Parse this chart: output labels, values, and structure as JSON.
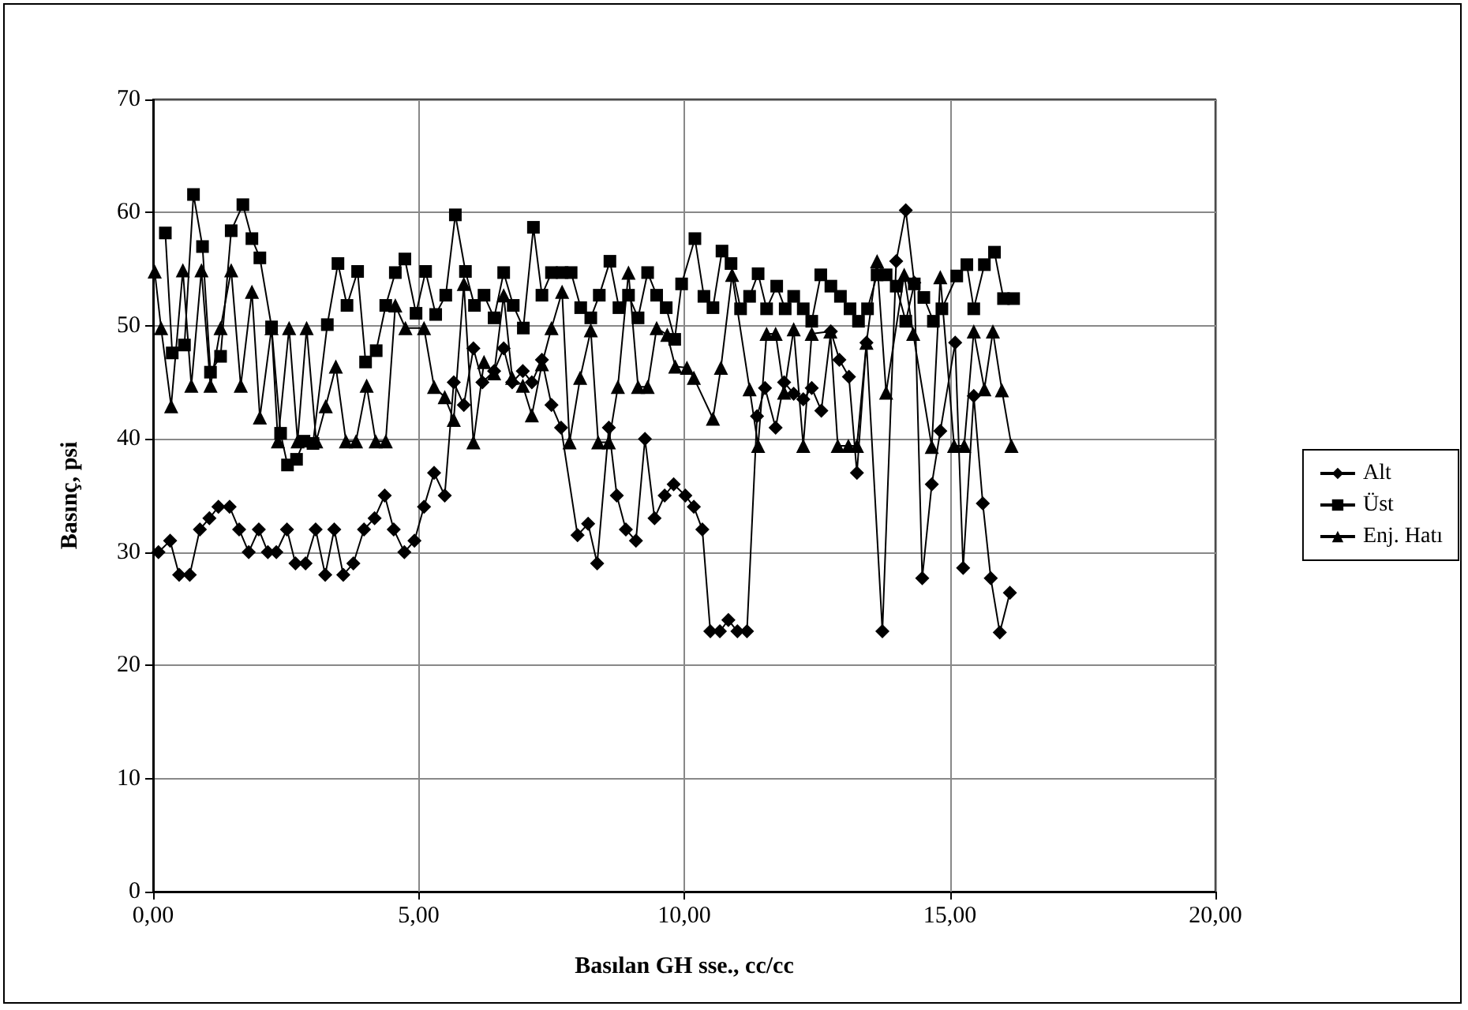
{
  "chart_data": {
    "type": "line",
    "xlabel": "Basılan GH sse., cc/cc",
    "ylabel": "Basınç, psi",
    "xlim": [
      0,
      20
    ],
    "xticks": [
      {
        "value": 0,
        "label": "0,00"
      },
      {
        "value": 5,
        "label": "5,00"
      },
      {
        "value": 10,
        "label": "10,00"
      },
      {
        "value": 15,
        "label": "15,00"
      },
      {
        "value": 20,
        "label": "20,00"
      }
    ],
    "ylim": [
      0,
      70
    ],
    "yticks": [
      0,
      10,
      20,
      30,
      40,
      50,
      60,
      70
    ],
    "grid": true,
    "legend": "right",
    "line_style": "solid",
    "series": [
      {
        "name": "Alt",
        "color": "#000000",
        "marker": "diamond",
        "x": [
          0.1,
          0.32,
          0.49,
          0.69,
          0.88,
          1.06,
          1.23,
          1.44,
          1.62,
          1.8,
          1.99,
          2.16,
          2.32,
          2.52,
          2.68,
          2.87,
          3.06,
          3.24,
          3.41,
          3.58,
          3.77,
          3.97,
          4.17,
          4.36,
          4.53,
          4.73,
          4.92,
          5.1,
          5.29,
          5.49,
          5.66,
          5.85,
          6.03,
          6.2,
          6.42,
          6.6,
          6.76,
          6.96,
          7.13,
          7.32,
          7.5,
          7.68,
          7.99,
          8.19,
          8.36,
          8.58,
          8.73,
          8.9,
          9.09,
          9.26,
          9.44,
          9.63,
          9.8,
          10.02,
          10.18,
          10.34,
          10.49,
          10.67,
          10.83,
          11.0,
          11.18,
          11.37,
          11.52,
          11.72,
          11.88,
          12.06,
          12.24,
          12.4,
          12.58,
          12.76,
          12.92,
          13.1,
          13.25,
          13.43,
          13.73,
          13.99,
          14.17,
          14.33,
          14.48,
          14.66,
          14.82,
          15.1,
          15.25,
          15.45,
          15.62,
          15.77,
          15.94,
          16.13
        ],
        "values": [
          30,
          31,
          28,
          28,
          32,
          33,
          34,
          34,
          32,
          30,
          32,
          30,
          30,
          32,
          29,
          29,
          32,
          28,
          32,
          28,
          29,
          32,
          33,
          35,
          32,
          30,
          31,
          34,
          37,
          35,
          45,
          43,
          48,
          45,
          46,
          48,
          45,
          46,
          45,
          47,
          43,
          41,
          31.5,
          32.5,
          29,
          41,
          35,
          32,
          31,
          40,
          33,
          35,
          36,
          35,
          34,
          32,
          23,
          23,
          24,
          23,
          23,
          42,
          44.5,
          41,
          45,
          44,
          43.5,
          44.5,
          42.5,
          49.5,
          47,
          45.5,
          37,
          48.5,
          23,
          55.7,
          60.2,
          53.8,
          27.7,
          36,
          40.7,
          48.5,
          28.6,
          43.8,
          34.3,
          27.7,
          22.9,
          26.4
        ]
      },
      {
        "name": "Üst",
        "color": "#000000",
        "marker": "square",
        "x": [
          0.23,
          0.36,
          0.59,
          0.76,
          0.93,
          1.08,
          1.27,
          1.47,
          1.69,
          1.86,
          2.01,
          2.23,
          2.4,
          2.53,
          2.7,
          2.84,
          3.01,
          3.28,
          3.48,
          3.65,
          3.85,
          4.0,
          4.2,
          4.38,
          4.56,
          4.74,
          4.95,
          5.13,
          5.32,
          5.51,
          5.69,
          5.88,
          6.05,
          6.23,
          6.42,
          6.6,
          6.78,
          6.97,
          7.16,
          7.32,
          7.5,
          7.7,
          7.87,
          8.05,
          8.24,
          8.4,
          8.6,
          8.77,
          8.95,
          9.13,
          9.31,
          9.48,
          9.66,
          9.82,
          9.95,
          10.2,
          10.37,
          10.54,
          10.71,
          10.88,
          11.06,
          11.23,
          11.39,
          11.55,
          11.74,
          11.9,
          12.06,
          12.24,
          12.4,
          12.57,
          12.76,
          12.94,
          13.12,
          13.28,
          13.45,
          13.63,
          13.8,
          13.99,
          14.17,
          14.33,
          14.51,
          14.69,
          14.85,
          15.13,
          15.32,
          15.45,
          15.65,
          15.84,
          16.01,
          16.2
        ],
        "values": [
          58.2,
          47.6,
          48.3,
          61.6,
          57,
          45.9,
          47.3,
          58.4,
          60.7,
          57.7,
          56,
          49.9,
          40.5,
          37.7,
          38.2,
          39.8,
          39.6,
          50.1,
          55.5,
          51.8,
          54.8,
          46.8,
          47.8,
          51.8,
          54.7,
          55.9,
          51.1,
          54.8,
          51,
          52.7,
          59.8,
          54.8,
          51.8,
          52.7,
          50.7,
          54.7,
          51.8,
          49.8,
          58.7,
          52.7,
          54.7,
          54.7,
          54.7,
          51.6,
          50.7,
          52.7,
          55.7,
          51.6,
          52.7,
          50.7,
          54.7,
          52.7,
          51.6,
          48.8,
          53.7,
          57.7,
          52.6,
          51.6,
          56.6,
          55.5,
          51.5,
          52.6,
          54.6,
          51.5,
          53.5,
          51.5,
          52.6,
          51.5,
          50.4,
          54.5,
          53.5,
          52.6,
          51.5,
          50.4,
          51.5,
          54.5,
          54.5,
          53.5,
          50.4,
          53.7,
          52.5,
          50.4,
          51.5,
          54.4,
          55.4,
          51.5,
          55.4,
          56.5,
          52.4,
          52.4
        ]
      },
      {
        "name": "Enj. Hatı",
        "color": "#000000",
        "marker": "triangle",
        "x": [
          0.03,
          0.15,
          0.34,
          0.56,
          0.72,
          0.91,
          1.08,
          1.27,
          1.47,
          1.65,
          1.86,
          2.01,
          2.23,
          2.35,
          2.56,
          2.72,
          2.89,
          3.07,
          3.25,
          3.44,
          3.63,
          3.82,
          4.02,
          4.19,
          4.38,
          4.56,
          4.75,
          5.1,
          5.29,
          5.49,
          5.66,
          5.85,
          6.03,
          6.23,
          6.42,
          6.6,
          6.76,
          6.96,
          7.13,
          7.32,
          7.5,
          7.7,
          7.84,
          8.04,
          8.24,
          8.38,
          8.58,
          8.75,
          8.95,
          9.13,
          9.31,
          9.48,
          9.68,
          9.83,
          10.05,
          10.18,
          10.54,
          10.69,
          10.9,
          11.23,
          11.39,
          11.55,
          11.72,
          11.88,
          12.06,
          12.24,
          12.4,
          12.75,
          12.89,
          13.09,
          13.25,
          13.43,
          13.63,
          13.8,
          14.14,
          14.31,
          14.66,
          14.82,
          15.08,
          15.27,
          15.45,
          15.65,
          15.81,
          15.98,
          16.16
        ],
        "values": [
          54.8,
          49.8,
          42.9,
          54.9,
          44.7,
          54.9,
          44.7,
          49.8,
          54.9,
          44.7,
          53,
          41.9,
          49.8,
          39.8,
          49.8,
          39.8,
          49.8,
          39.8,
          42.9,
          46.4,
          39.8,
          39.8,
          44.7,
          39.8,
          39.8,
          51.8,
          49.8,
          49.8,
          44.6,
          43.7,
          41.7,
          53.7,
          39.7,
          46.8,
          45.8,
          52.7,
          45.4,
          44.7,
          42.1,
          46.6,
          49.8,
          53,
          39.7,
          45.4,
          49.6,
          39.7,
          39.7,
          44.6,
          54.7,
          44.6,
          44.6,
          49.8,
          49.2,
          46.4,
          46.3,
          45.4,
          41.8,
          46.3,
          54.5,
          44.4,
          39.4,
          49.3,
          49.3,
          44.1,
          49.7,
          39.4,
          49.3,
          49.5,
          39.4,
          39.4,
          39.4,
          48.5,
          55.7,
          44.1,
          54.5,
          49.3,
          39.3,
          54.3,
          39.4,
          39.4,
          49.5,
          44.4,
          49.5,
          44.3,
          39.4
        ]
      }
    ]
  }
}
